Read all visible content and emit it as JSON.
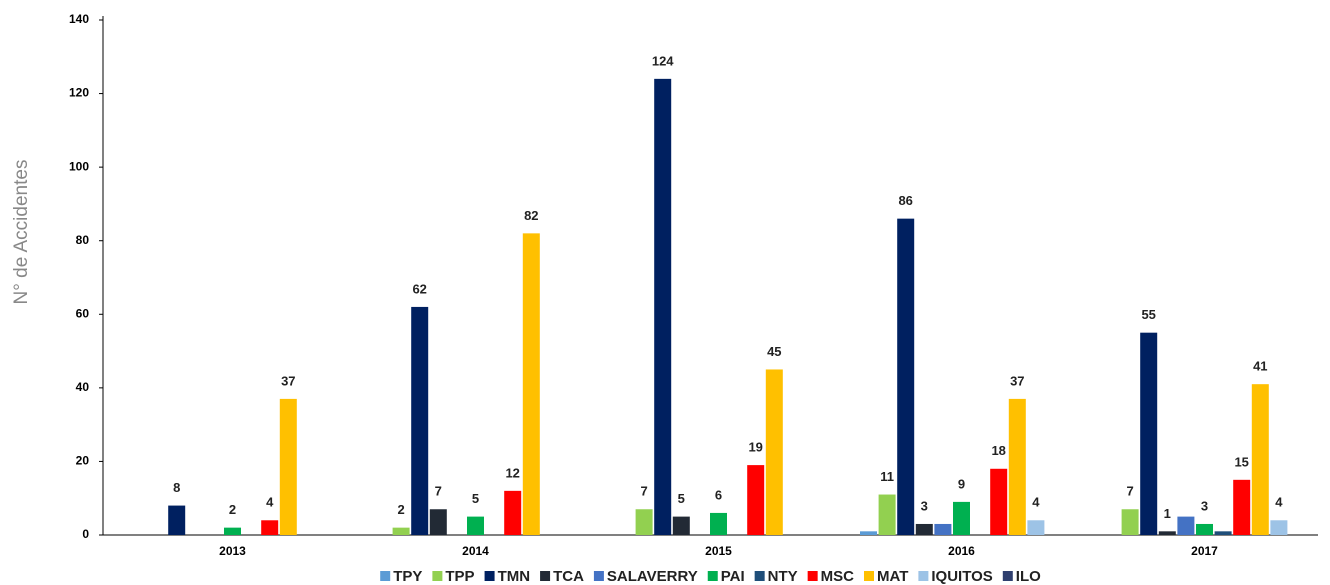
{
  "chart_data": {
    "type": "bar",
    "y_label": "N° de Accidentes",
    "categories": [
      "2013",
      "2014",
      "2015",
      "2016",
      "2017"
    ],
    "series": [
      {
        "name": "TPY",
        "color": "#5b9bd5",
        "values": [
          null,
          null,
          null,
          1,
          null
        ],
        "value_labels": [
          null,
          null,
          null,
          null,
          null
        ]
      },
      {
        "name": "TPP",
        "color": "#92d050",
        "values": [
          null,
          2,
          7,
          11,
          7
        ],
        "value_labels": [
          null,
          "2",
          "7",
          "11",
          "7"
        ]
      },
      {
        "name": "TMN",
        "color": "#002060",
        "values": [
          8,
          62,
          124,
          86,
          55
        ],
        "value_labels": [
          "8",
          "62",
          "124",
          "86",
          "55"
        ]
      },
      {
        "name": "TCA",
        "color": "#222a35",
        "values": [
          null,
          7,
          5,
          3,
          1
        ],
        "value_labels": [
          null,
          "7",
          "5",
          "3",
          "1"
        ]
      },
      {
        "name": "SALAVERRY",
        "color": "#4472c4",
        "values": [
          null,
          null,
          null,
          3,
          5
        ],
        "value_labels": [
          null,
          null,
          null,
          null,
          null
        ]
      },
      {
        "name": "PAI",
        "color": "#00b050",
        "values": [
          2,
          5,
          6,
          9,
          3
        ],
        "value_labels": [
          "2",
          "5",
          "6",
          "9",
          "3"
        ]
      },
      {
        "name": "NTY",
        "color": "#1f4e79",
        "values": [
          null,
          null,
          null,
          null,
          1
        ],
        "value_labels": [
          null,
          null,
          null,
          null,
          null
        ]
      },
      {
        "name": "MSC",
        "color": "#ff0000",
        "values": [
          4,
          12,
          19,
          18,
          15
        ],
        "value_labels": [
          "4",
          "12",
          "19",
          "18",
          "15"
        ]
      },
      {
        "name": "MAT",
        "color": "#ffc000",
        "values": [
          37,
          82,
          45,
          37,
          41
        ],
        "value_labels": [
          "37",
          "82",
          "45",
          "37",
          "41"
        ]
      },
      {
        "name": "IQUITOS",
        "color": "#9dc3e6",
        "values": [
          null,
          null,
          null,
          4,
          4
        ],
        "value_labels": [
          null,
          null,
          null,
          "4",
          "4"
        ]
      },
      {
        "name": "ILO",
        "color": "#2f3f6f",
        "values": [
          null,
          null,
          null,
          null,
          null
        ],
        "value_labels": [
          null,
          null,
          null,
          null,
          null
        ]
      }
    ],
    "ylim": [
      0,
      140
    ],
    "yticks": [
      0,
      20,
      40,
      60,
      80,
      100,
      120,
      140
    ],
    "grid": false,
    "legend": "bottom"
  }
}
